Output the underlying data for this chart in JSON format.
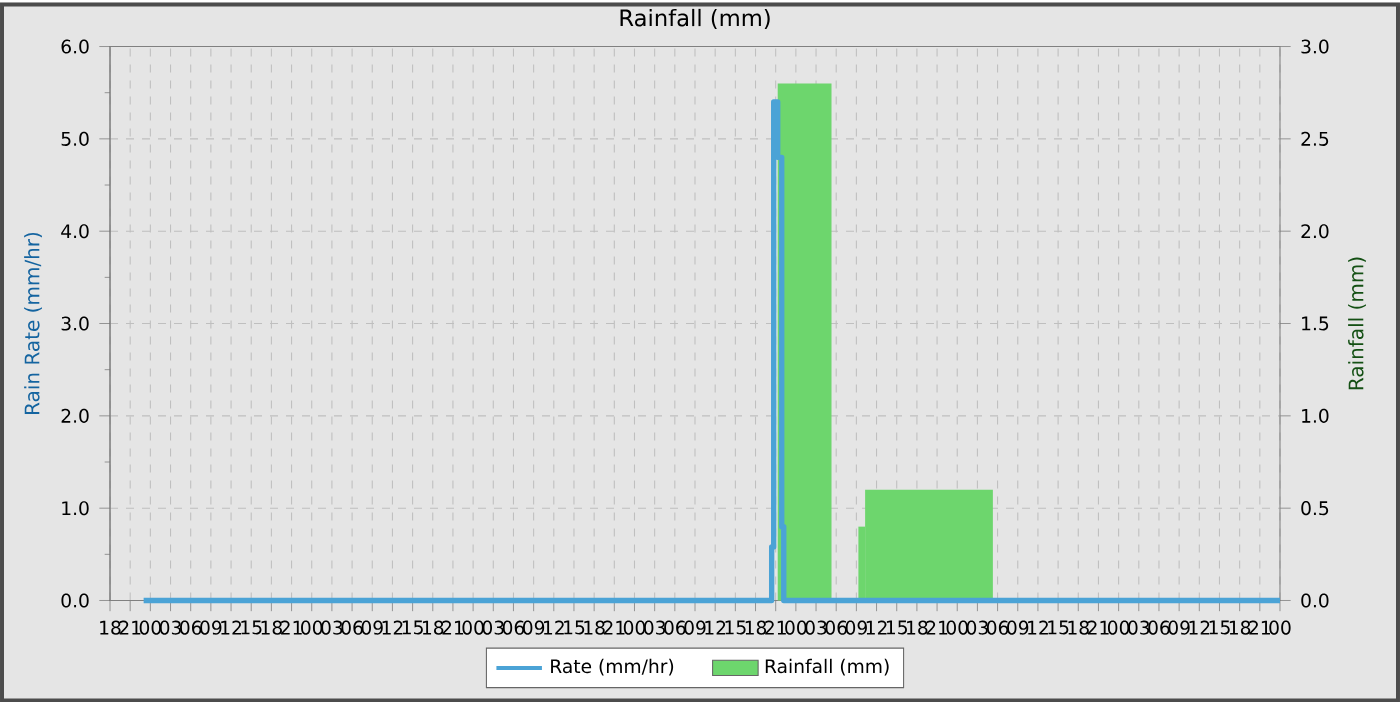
{
  "chart_data": {
    "type": "histogram",
    "title": "Rainfall (mm)",
    "ylabel": "Rain Rate (mm/hr)",
    "y2label": "Rainfall (mm)",
    "xlim": [
      18,
      192
    ],
    "xticks": [
      {
        "value": 18,
        "label": "18"
      },
      {
        "value": 21,
        "label": "21"
      },
      {
        "value": 24,
        "label": "00"
      },
      {
        "value": 27,
        "label": "03"
      },
      {
        "value": 30,
        "label": "06"
      },
      {
        "value": 33,
        "label": "09"
      },
      {
        "value": 36,
        "label": "12"
      },
      {
        "value": 39,
        "label": "15"
      },
      {
        "value": 42,
        "label": "18"
      },
      {
        "value": 45,
        "label": "21"
      },
      {
        "value": 48,
        "label": "00"
      },
      {
        "value": 51,
        "label": "03"
      },
      {
        "value": 54,
        "label": "06"
      },
      {
        "value": 57,
        "label": "09"
      },
      {
        "value": 60,
        "label": "12"
      },
      {
        "value": 63,
        "label": "15"
      },
      {
        "value": 66,
        "label": "18"
      },
      {
        "value": 69,
        "label": "21"
      },
      {
        "value": 72,
        "label": "00"
      },
      {
        "value": 75,
        "label": "03"
      },
      {
        "value": 78,
        "label": "06"
      },
      {
        "value": 81,
        "label": "09"
      },
      {
        "value": 84,
        "label": "12"
      },
      {
        "value": 87,
        "label": "15"
      },
      {
        "value": 90,
        "label": "18"
      },
      {
        "value": 93,
        "label": "21"
      },
      {
        "value": 96,
        "label": "00"
      },
      {
        "value": 99,
        "label": "03"
      },
      {
        "value": 102,
        "label": "06"
      },
      {
        "value": 105,
        "label": "09"
      },
      {
        "value": 108,
        "label": "12"
      },
      {
        "value": 111,
        "label": "15"
      },
      {
        "value": 114,
        "label": "18"
      },
      {
        "value": 117,
        "label": "21"
      },
      {
        "value": 120,
        "label": "00"
      },
      {
        "value": 123,
        "label": "03"
      },
      {
        "value": 126,
        "label": "06"
      },
      {
        "value": 129,
        "label": "09"
      },
      {
        "value": 132,
        "label": "12"
      },
      {
        "value": 135,
        "label": "15"
      },
      {
        "value": 138,
        "label": "18"
      },
      {
        "value": 141,
        "label": "21"
      },
      {
        "value": 144,
        "label": "00"
      },
      {
        "value": 147,
        "label": "03"
      },
      {
        "value": 150,
        "label": "06"
      },
      {
        "value": 153,
        "label": "09"
      },
      {
        "value": 156,
        "label": "12"
      },
      {
        "value": 159,
        "label": "15"
      },
      {
        "value": 162,
        "label": "18"
      },
      {
        "value": 165,
        "label": "21"
      },
      {
        "value": 168,
        "label": "00"
      },
      {
        "value": 171,
        "label": "03"
      },
      {
        "value": 174,
        "label": "06"
      },
      {
        "value": 177,
        "label": "09"
      },
      {
        "value": 180,
        "label": "12"
      },
      {
        "value": 183,
        "label": "15"
      },
      {
        "value": 186,
        "label": "18"
      },
      {
        "value": 189,
        "label": "21"
      },
      {
        "value": 192,
        "label": "00"
      }
    ],
    "ylim": [
      0,
      6
    ],
    "yticks": [
      {
        "value": 0,
        "label": "0.0"
      },
      {
        "value": 0.5,
        "label": null
      },
      {
        "value": 1,
        "label": "1.0"
      },
      {
        "value": 1.5,
        "label": null
      },
      {
        "value": 2,
        "label": "2.0"
      },
      {
        "value": 2.5,
        "label": null
      },
      {
        "value": 3,
        "label": "3.0"
      },
      {
        "value": 3.5,
        "label": null
      },
      {
        "value": 4,
        "label": "4.0"
      },
      {
        "value": 4.5,
        "label": null
      },
      {
        "value": 5,
        "label": "5.0"
      },
      {
        "value": 5.5,
        "label": null
      },
      {
        "value": 6,
        "label": "6.0"
      }
    ],
    "y2lim": [
      0,
      3
    ],
    "y2ticks": [
      {
        "value": 0,
        "label": "0.0"
      },
      {
        "value": 0.5,
        "label": "0.5"
      },
      {
        "value": 1,
        "label": "1.0"
      },
      {
        "value": 1.5,
        "label": "1.5"
      },
      {
        "value": 2,
        "label": "2.0"
      },
      {
        "value": 2.5,
        "label": "2.5"
      },
      {
        "value": 3,
        "label": "3.0"
      }
    ],
    "grid": true,
    "legend": "bottom",
    "series": [
      {
        "name": "Rate (mm/hr)",
        "type": "step",
        "axis": "y",
        "color": "#4ba3d6",
        "x": [
          23,
          116.4,
          116.7,
          117.3,
          117.9,
          118.2,
          192
        ],
        "values": [
          0,
          0.58,
          5.4,
          4.8,
          0.8,
          0,
          0
        ]
      },
      {
        "name": "Rainfall (mm)",
        "axis": "y2",
        "color": "#6dd66d",
        "bins": [
          117.3,
          125.3,
          129.3,
          130.3,
          149.3
        ],
        "values": [
          2.8,
          null,
          0.4,
          0.6
        ]
      }
    ]
  }
}
